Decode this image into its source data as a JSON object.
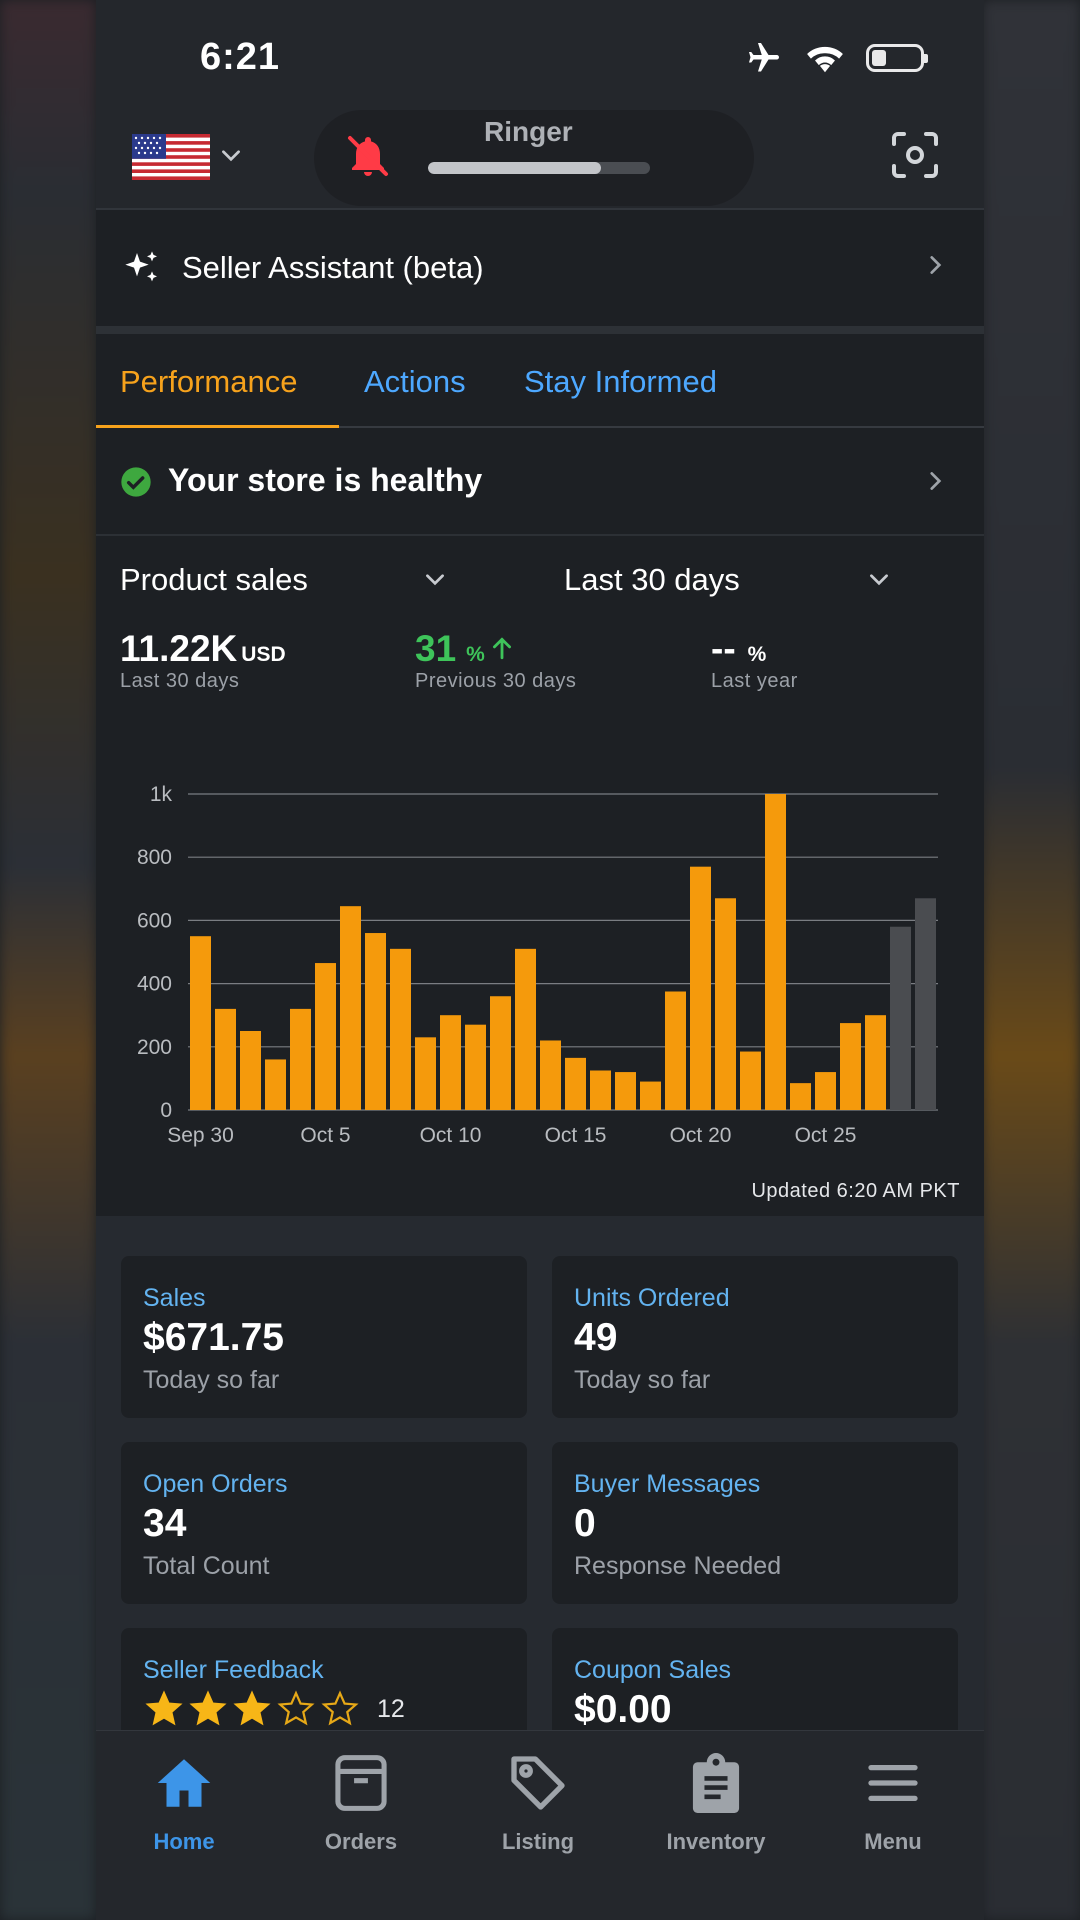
{
  "status_bar": {
    "time": "6:21"
  },
  "ringer": {
    "label": "Ringer",
    "level": 0.78
  },
  "assistant": {
    "label": "Seller Assistant (beta)"
  },
  "tabs": [
    {
      "label": "Performance",
      "active": true
    },
    {
      "label": "Actions",
      "active": false
    },
    {
      "label": "Stay Informed",
      "active": false
    }
  ],
  "health": {
    "label": "Your store is healthy"
  },
  "sales_card": {
    "metric_select": "Product sales",
    "range_select": "Last 30 days",
    "metrics": [
      {
        "value": "11.22K",
        "unit": "USD",
        "sub": "Last 30 days"
      },
      {
        "value": "31",
        "unit": "%",
        "sub": "Previous 30 days"
      },
      {
        "value": "--",
        "unit": "%",
        "sub": "Last year"
      }
    ],
    "updated": "Updated 6:20 AM PKT"
  },
  "chart_data": {
    "type": "bar",
    "x_tick_labels": [
      "Sep 30",
      "Oct 5",
      "Oct 10",
      "Oct 15",
      "Oct 20",
      "Oct 25"
    ],
    "y_tick_labels": [
      "0",
      "200",
      "400",
      "600",
      "800",
      "1k"
    ],
    "ylim": [
      0,
      1000
    ],
    "grid": true,
    "categories": [
      "Sep 30",
      "Oct 1",
      "Oct 2",
      "Oct 3",
      "Oct 4",
      "Oct 5",
      "Oct 6",
      "Oct 7",
      "Oct 8",
      "Oct 9",
      "Oct 10",
      "Oct 11",
      "Oct 12",
      "Oct 13",
      "Oct 14",
      "Oct 15",
      "Oct 16",
      "Oct 17",
      "Oct 18",
      "Oct 19",
      "Oct 20",
      "Oct 21",
      "Oct 22",
      "Oct 23",
      "Oct 24",
      "Oct 25",
      "Oct 26",
      "Oct 27",
      "Oct 28",
      "Oct 29"
    ],
    "values": [
      550,
      320,
      250,
      160,
      320,
      465,
      645,
      560,
      510,
      230,
      300,
      270,
      360,
      510,
      220,
      165,
      125,
      120,
      90,
      375,
      770,
      670,
      185,
      1000,
      85,
      120,
      275,
      300,
      580,
      670
    ],
    "colors": {
      "main": "#f59a0c",
      "partial": "#4a4c50",
      "grid": "#7a7d82",
      "tick": "#b9bcc0"
    },
    "partial_from_index": 28
  },
  "tiles": [
    {
      "title": "Sales",
      "value": "$671.75",
      "sub": "Today so far"
    },
    {
      "title": "Units Ordered",
      "value": "49",
      "sub": "Today so far"
    },
    {
      "title": "Open Orders",
      "value": "34",
      "sub": "Total Count"
    },
    {
      "title": "Buyer Messages",
      "value": "0",
      "sub": "Response Needed"
    },
    {
      "title": "Seller Feedback",
      "rating": 3,
      "rating_max": 5,
      "count": "12"
    },
    {
      "title": "Coupon Sales",
      "value": "$0.00"
    }
  ],
  "bottom_nav": [
    {
      "label": "Home",
      "icon": "home-icon",
      "active": true
    },
    {
      "label": "Orders",
      "icon": "box-icon",
      "active": false
    },
    {
      "label": "Listing",
      "icon": "tag-icon",
      "active": false
    },
    {
      "label": "Inventory",
      "icon": "clipboard-icon",
      "active": false
    },
    {
      "label": "Menu",
      "icon": "menu-icon",
      "active": false
    }
  ]
}
